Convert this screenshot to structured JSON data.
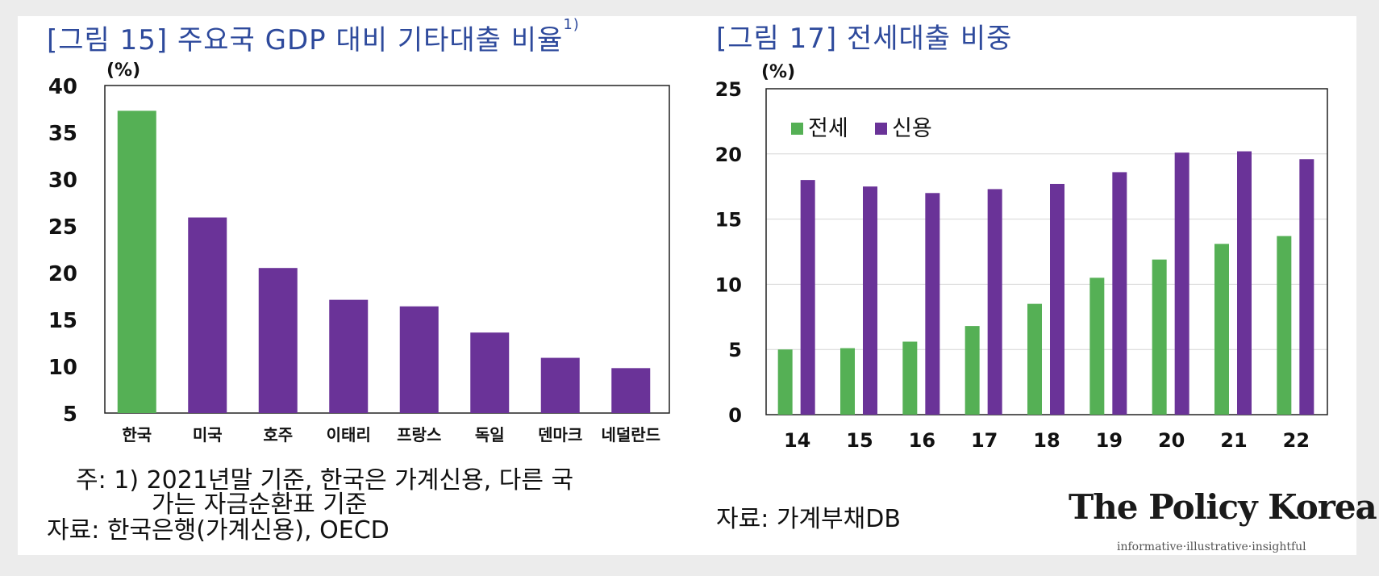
{
  "colors": {
    "title": "#2e4a9c",
    "green": "#55b055",
    "purple": "#6a3398"
  },
  "left": {
    "title": "[그림 15] 주요국 GDP 대비 기타대출 비율",
    "title_sup": "1)",
    "note_line1": "주: 1) 2021년말 기준, 한국은 가계신용, 다른 국",
    "note_line2": "가는 자금순환표 기준",
    "source": "자료: 한국은행(가계신용), OECD"
  },
  "right": {
    "title": "[그림 17] 전세대출 비중",
    "source": "자료: 가계부채DB"
  },
  "brand": {
    "name": "The Policy Korea",
    "tagline": "informative·illustrative·insightful"
  },
  "chart_data": [
    {
      "type": "bar",
      "unit": "(%)",
      "categories": [
        "한국",
        "미국",
        "호주",
        "이태리",
        "프랑스",
        "독일",
        "덴마크",
        "네덜란드"
      ],
      "values": [
        37.3,
        25.9,
        20.5,
        17.1,
        16.4,
        13.6,
        10.9,
        9.8
      ],
      "highlight_index": 0,
      "ylim": [
        5,
        40
      ],
      "yticks": [
        "5",
        "10",
        "15",
        "20",
        "25",
        "30",
        "35",
        "40"
      ],
      "grid": false
    },
    {
      "type": "bar",
      "unit": "(%)",
      "categories": [
        "14",
        "15",
        "16",
        "17",
        "18",
        "19",
        "20",
        "21",
        "22"
      ],
      "series": [
        {
          "name": "전세",
          "values": [
            5.0,
            5.1,
            5.6,
            6.8,
            8.5,
            10.5,
            11.9,
            13.1,
            13.7
          ]
        },
        {
          "name": "신용",
          "values": [
            18.0,
            17.5,
            17.0,
            17.3,
            17.7,
            18.6,
            20.1,
            20.2,
            19.6
          ]
        }
      ],
      "ylim": [
        0,
        25
      ],
      "yticks": [
        "0",
        "5",
        "10",
        "15",
        "20",
        "25"
      ],
      "grid": true,
      "legend_position": "top-left"
    }
  ]
}
